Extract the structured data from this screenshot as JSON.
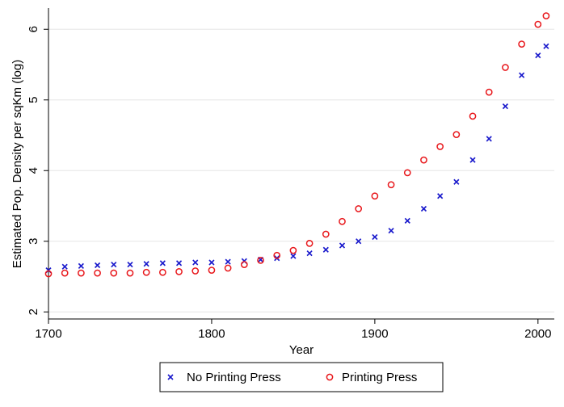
{
  "chart_data": {
    "type": "scatter",
    "title": "",
    "xlabel": "Year",
    "ylabel": "Estimated Pop. Density per sqKm (log)",
    "xlim": [
      1700,
      2010
    ],
    "ylim": [
      1.9,
      6.3
    ],
    "x_ticks": [
      1700,
      1800,
      1900,
      2000
    ],
    "y_ticks": [
      2,
      3,
      4,
      5,
      6
    ],
    "grid": "horizontal",
    "legend": "bottom",
    "series": [
      {
        "name": "No Printing Press",
        "marker": "x",
        "color": "#1a1acc",
        "x": [
          1700,
          1710,
          1720,
          1730,
          1740,
          1750,
          1760,
          1770,
          1780,
          1790,
          1800,
          1810,
          1820,
          1830,
          1840,
          1850,
          1860,
          1870,
          1880,
          1890,
          1900,
          1910,
          1920,
          1930,
          1940,
          1950,
          1960,
          1970,
          1980,
          1990,
          2000,
          2005
        ],
        "y": [
          2.59,
          2.64,
          2.65,
          2.66,
          2.67,
          2.67,
          2.68,
          2.69,
          2.69,
          2.7,
          2.7,
          2.71,
          2.72,
          2.74,
          2.76,
          2.79,
          2.83,
          2.88,
          2.94,
          3.0,
          3.06,
          3.15,
          3.29,
          3.46,
          3.64,
          3.84,
          4.15,
          4.45,
          4.91,
          5.35,
          5.63,
          5.76
        ]
      },
      {
        "name": "Printing Press",
        "marker": "circle",
        "color": "#e8181c",
        "x": [
          1700,
          1710,
          1720,
          1730,
          1740,
          1750,
          1760,
          1770,
          1780,
          1790,
          1800,
          1810,
          1820,
          1830,
          1840,
          1850,
          1860,
          1870,
          1880,
          1890,
          1900,
          1910,
          1920,
          1930,
          1940,
          1950,
          1960,
          1970,
          1980,
          1990,
          2000,
          2005
        ],
        "y": [
          2.54,
          2.55,
          2.55,
          2.55,
          2.55,
          2.55,
          2.56,
          2.56,
          2.57,
          2.58,
          2.59,
          2.62,
          2.67,
          2.73,
          2.8,
          2.87,
          2.97,
          3.1,
          3.28,
          3.46,
          3.64,
          3.8,
          3.97,
          4.15,
          4.34,
          4.51,
          4.77,
          5.11,
          5.46,
          5.79,
          6.07,
          6.19
        ]
      }
    ]
  }
}
